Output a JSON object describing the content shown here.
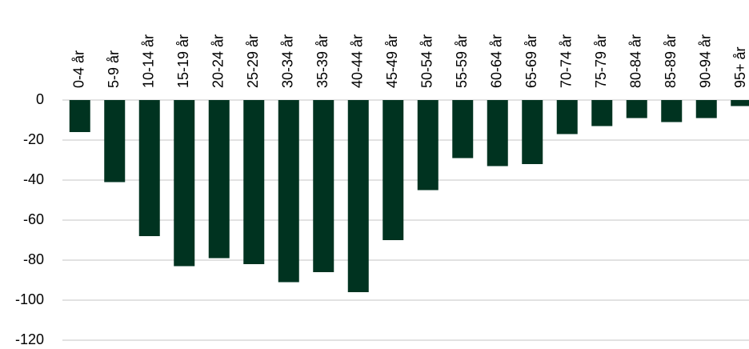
{
  "chart_data": {
    "type": "bar",
    "categories": [
      "0-4 år",
      "5-9 år",
      "10-14 år",
      "15-19 år",
      "20-24 år",
      "25-29 år",
      "30-34 år",
      "35-39 år",
      "40-44 år",
      "45-49 år",
      "50-54 år",
      "55-59 år",
      "60-64 år",
      "65-69 år",
      "70-74 år",
      "75-79 år",
      "80-84 år",
      "85-89 år",
      "90-94 år",
      "95+ år"
    ],
    "values": [
      -16,
      -41,
      -68,
      -83,
      -79,
      -82,
      -91,
      -86,
      -96,
      -70,
      -45,
      -29,
      -33,
      -32,
      -17,
      -13,
      -9,
      -11,
      -9,
      -3
    ],
    "color": "#003320",
    "ylim": [
      -120,
      0
    ],
    "yticks": [
      0,
      -20,
      -40,
      -60,
      -80,
      -100,
      -120
    ],
    "grid": true
  }
}
